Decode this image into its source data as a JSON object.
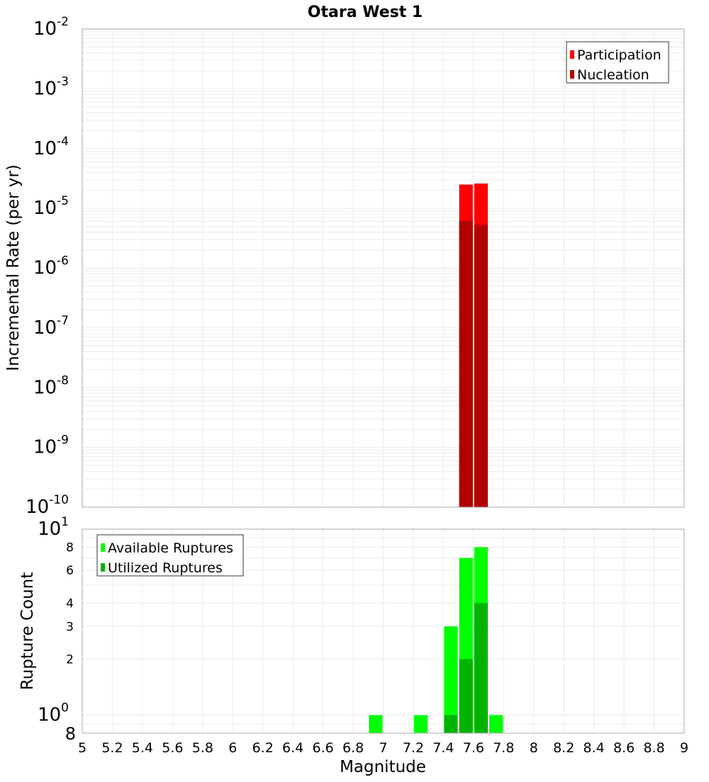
{
  "title": "Otara West 1",
  "colors": {
    "participation": "#ff0000",
    "nucleation": "#b30000",
    "available": "#00ff00",
    "utilized": "#00b300",
    "grid": "#ebebeb",
    "axis": "#aaaaaa"
  },
  "chart_data": [
    {
      "type": "bar",
      "title": "Otara West 1",
      "xlabel": "Magnitude",
      "ylabel": "Incremental Rate (per yr)",
      "yscale": "log",
      "xlim": [
        5,
        9
      ],
      "ylim": [
        1e-10,
        0.01
      ],
      "bar_width": 0.1,
      "grid": true,
      "legend_position": "upper right",
      "y_tick_labels": [
        "10^-2",
        "10^-3",
        "10^-4",
        "10^-5",
        "10^-6",
        "10^-7",
        "10^-8",
        "10^-9",
        "10^-10"
      ],
      "x": [
        7.55,
        7.65
      ],
      "series": [
        {
          "name": "Participation",
          "color": "#ff0000",
          "values": [
            2.5e-05,
            2.6e-05
          ]
        },
        {
          "name": "Nucleation",
          "color": "#b30000",
          "values": [
            6.2e-06,
            5.3e-06
          ]
        }
      ]
    },
    {
      "type": "bar",
      "title": "",
      "xlabel": "Magnitude",
      "ylabel": "Rupture Count",
      "yscale": "log",
      "xlim": [
        5,
        9
      ],
      "ylim": [
        0.8,
        10
      ],
      "bar_width": 0.1,
      "grid": true,
      "legend_position": "upper left",
      "y_tick_labels": [
        "10^1",
        "8",
        "6",
        "4",
        "3",
        "2",
        "10^0",
        "8"
      ],
      "x_tick_labels": [
        "5",
        "5.2",
        "5.4",
        "5.6",
        "5.8",
        "6",
        "6.2",
        "6.4",
        "6.6",
        "6.8",
        "7",
        "7.2",
        "7.4",
        "7.6",
        "7.8",
        "8",
        "8.2",
        "8.4",
        "8.6",
        "8.8",
        "9"
      ],
      "x": [
        6.95,
        7.25,
        7.45,
        7.55,
        7.65,
        7.75
      ],
      "series": [
        {
          "name": "Available Ruptures",
          "color": "#00ff00",
          "values": [
            1,
            1,
            3,
            7,
            8,
            1
          ]
        },
        {
          "name": "Utilized Ruptures",
          "color": "#00b300",
          "values": [
            0,
            0,
            1,
            2,
            4,
            0
          ]
        }
      ]
    }
  ],
  "labels": {
    "top_ylabel": "Incremental Rate (per yr)",
    "bottom_ylabel": "Rupture Count",
    "xlabel": "Magnitude",
    "legend_top": [
      "Participation",
      "Nucleation"
    ],
    "legend_bottom": [
      "Available Ruptures",
      "Utilized Ruptures"
    ]
  }
}
